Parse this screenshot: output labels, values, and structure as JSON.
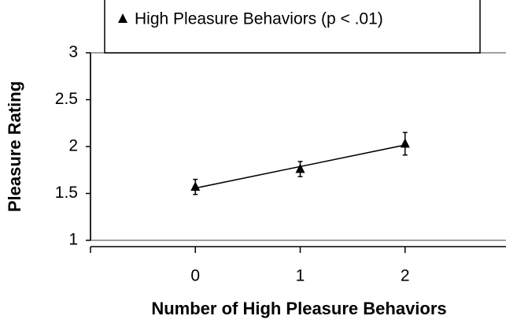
{
  "chart_data": {
    "type": "scatter",
    "x_label": "Number of High Pleasure Behaviors",
    "y_label": "Pleasure Rating",
    "x": [
      0,
      1,
      2
    ],
    "series": [
      {
        "name": "High Pleasure Behaviors (p < .01)",
        "color": "#000000",
        "values": [
          1.57,
          1.76,
          2.03
        ],
        "errors": [
          0.08,
          0.08,
          0.12
        ]
      }
    ],
    "xlim": [
      -1,
      3
    ],
    "xticks": [
      0,
      1,
      2
    ],
    "ylim": [
      1,
      3
    ],
    "yticks": [
      1,
      1.5,
      2,
      2.5,
      3
    ],
    "trendline": true,
    "legend": "top"
  }
}
